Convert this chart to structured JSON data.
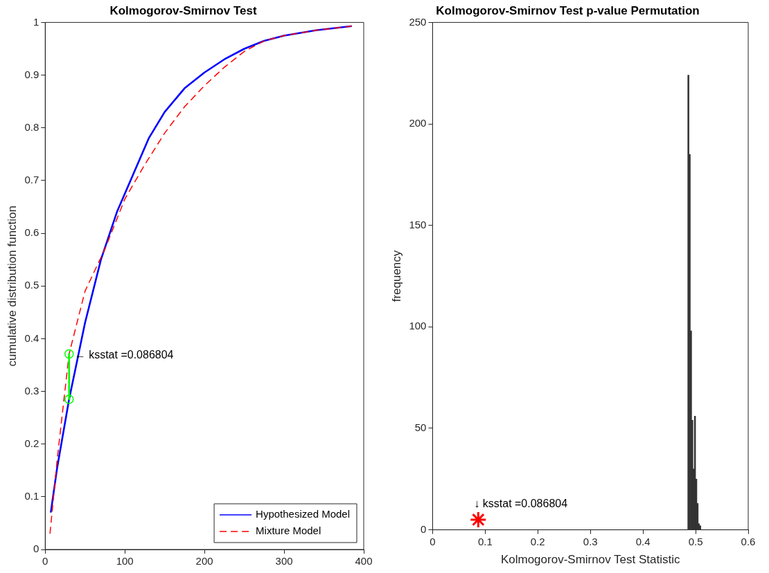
{
  "chart_data": [
    {
      "type": "line",
      "title": "Kolmogorov-Smirnov Test",
      "ylabel": "cumulative distribution function",
      "xlim": [
        0,
        400
      ],
      "xticks": [
        0,
        100,
        200,
        300,
        400
      ],
      "ylim": [
        0,
        1
      ],
      "yticks": [
        0,
        0.1,
        0.2,
        0.3,
        0.4,
        0.5,
        0.6,
        0.7,
        0.8,
        0.9,
        1
      ],
      "grid": false,
      "legend": "bottom right",
      "series": [
        {
          "name": "Hypothesized Model",
          "color": "#0000ff",
          "line_style": "solid",
          "marker": "none",
          "x": [
            7,
            15,
            30,
            50,
            70,
            90,
            110,
            130,
            150,
            175,
            200,
            225,
            250,
            275,
            300,
            340,
            385
          ],
          "values": [
            0.07,
            0.155,
            0.285,
            0.43,
            0.55,
            0.64,
            0.71,
            0.78,
            0.83,
            0.875,
            0.905,
            0.93,
            0.95,
            0.965,
            0.975,
            0.985,
            0.993
          ]
        },
        {
          "name": "Mixture Model",
          "color": "#ff0000",
          "line_style": "dashed",
          "marker": "none",
          "x": [
            6,
            15,
            30,
            50,
            75,
            100,
            125,
            150,
            175,
            200,
            225,
            250,
            275,
            300,
            340,
            385
          ],
          "values": [
            0.03,
            0.17,
            0.371,
            0.49,
            0.57,
            0.665,
            0.73,
            0.79,
            0.84,
            0.88,
            0.915,
            0.945,
            0.965,
            0.975,
            0.985,
            0.993
          ]
        },
        {
          "color": "#00ff00",
          "line_style": "solid",
          "marker": "circle",
          "x": [
            30,
            30
          ],
          "values": [
            0.371,
            0.285
          ]
        }
      ],
      "annotations": [
        {
          "text": "← ksstat =0.086804",
          "x": 30,
          "y": 0.371
        }
      ]
    },
    {
      "type": "histogram",
      "title": "Kolmogorov-Smirnov Test p-value Permutation",
      "xlabel": "Kolmogorov-Smirnov Test Statistic",
      "ylabel": "frequency",
      "xlim": [
        0,
        0.6
      ],
      "xticks": [
        0,
        0.1,
        0.2,
        0.3,
        0.4,
        0.5,
        0.6
      ],
      "ylim": [
        0,
        250
      ],
      "yticks": [
        0,
        50,
        100,
        150,
        200,
        250
      ],
      "grid": false,
      "bins": [
        0.485,
        0.4875,
        0.49,
        0.4925,
        0.495,
        0.4975,
        0.5,
        0.5025,
        0.505,
        0.5075,
        0.51
      ],
      "values": [
        224,
        185,
        98,
        54,
        30,
        56,
        25,
        13,
        3,
        2
      ],
      "color": "#333333",
      "series": [
        {
          "type": "scatter",
          "color": "#ff0000",
          "marker": "cross",
          "x": [
            0.086804
          ],
          "values": [
            5
          ]
        }
      ],
      "annotations": [
        {
          "text": "↓ ksstat =0.086804",
          "x": 0.086804,
          "y": 5
        }
      ]
    }
  ]
}
